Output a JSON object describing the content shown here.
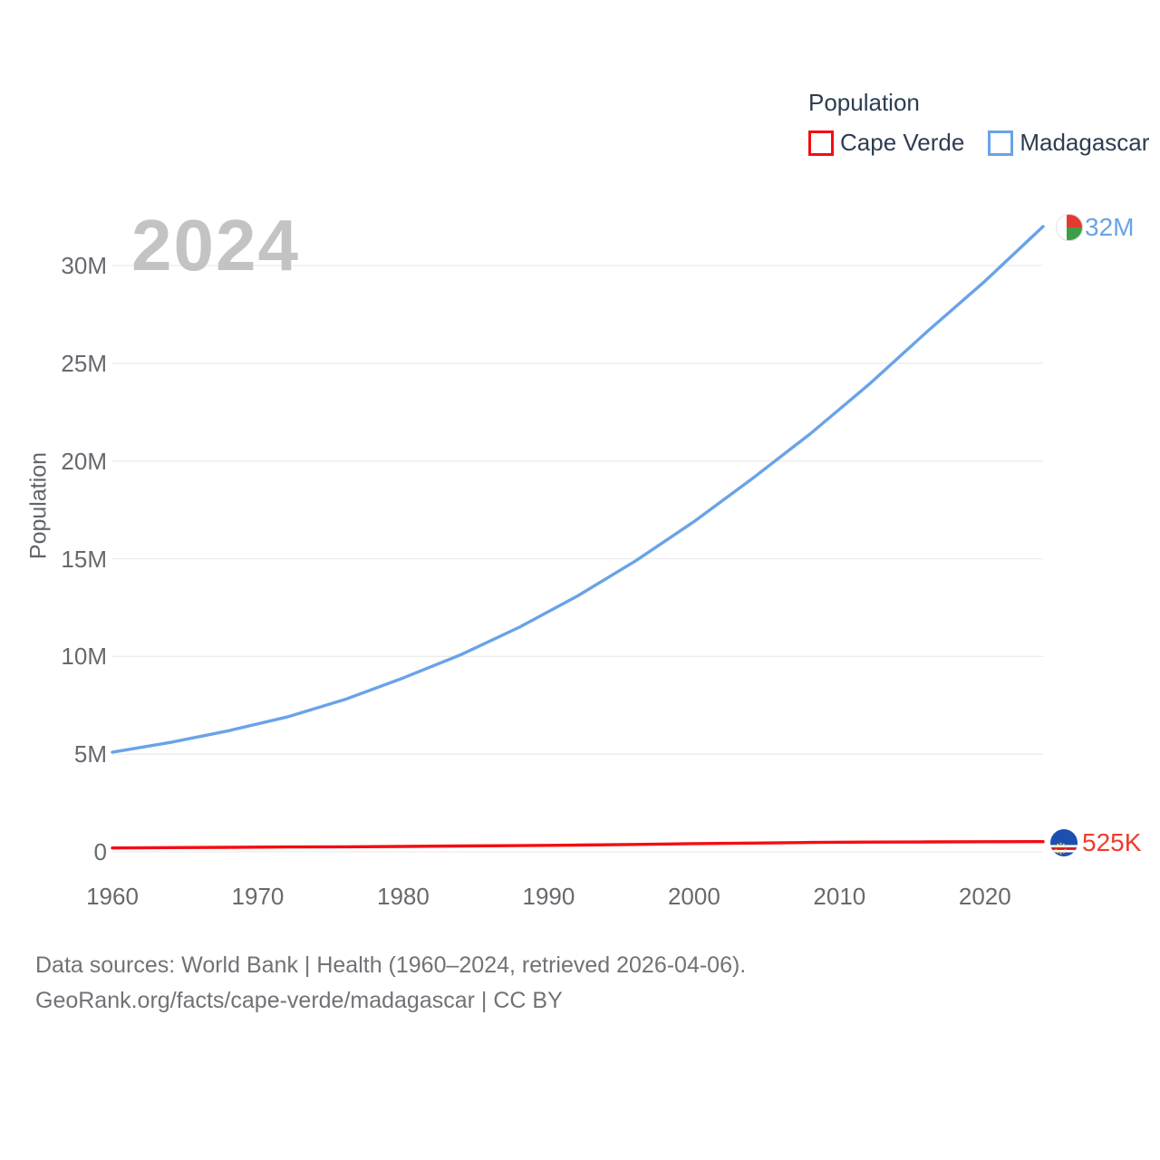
{
  "page": {
    "background": "#ffffff"
  },
  "legend": {
    "title": "Population",
    "items": [
      {
        "label": "Cape Verde",
        "color": "#f40d12"
      },
      {
        "label": "Madagascar",
        "color": "#69a3e8"
      }
    ]
  },
  "watermark_year": "2024",
  "end_labels": [
    {
      "text": "525K",
      "color": "#ef3b2d",
      "flag": "cape-verde-flag"
    },
    {
      "text": "32M",
      "color": "#69a3e8",
      "flag": "madagascar-flag"
    }
  ],
  "footer": {
    "line1": "Data sources: World Bank | Health (1960–2024, retrieved 2026-04-06).",
    "line2": "GeoRank.org/facts/cape-verde/madagascar | CC BY"
  },
  "chart_data": {
    "type": "line",
    "title": "Population",
    "xlabel": "",
    "ylabel": "Population",
    "grid": true,
    "legend_position": "top-right",
    "x_range": [
      1960,
      2024
    ],
    "ylim_millions": [
      0,
      32.5
    ],
    "x_ticks": [
      "1960",
      "1970",
      "1980",
      "1990",
      "2000",
      "2010",
      "2020"
    ],
    "y_ticks": [
      {
        "value_millions": 0,
        "label": "0"
      },
      {
        "value_millions": 5,
        "label": "5M"
      },
      {
        "value_millions": 10,
        "label": "10M"
      },
      {
        "value_millions": 15,
        "label": "15M"
      },
      {
        "value_millions": 20,
        "label": "20M"
      },
      {
        "value_millions": 25,
        "label": "25M"
      },
      {
        "value_millions": 30,
        "label": "30M"
      }
    ],
    "years": [
      1960,
      1964,
      1968,
      1972,
      1976,
      1980,
      1984,
      1988,
      1992,
      1996,
      2000,
      2004,
      2008,
      2012,
      2016,
      2020,
      2024
    ],
    "series": [
      {
        "name": "Cape Verde",
        "color": "#f40d12",
        "end_label": "525K",
        "values_millions": [
          0.2,
          0.22,
          0.23,
          0.25,
          0.26,
          0.28,
          0.3,
          0.32,
          0.35,
          0.38,
          0.42,
          0.45,
          0.48,
          0.5,
          0.51,
          0.52,
          0.525
        ]
      },
      {
        "name": "Madagascar",
        "color": "#69a3e8",
        "end_label": "32M",
        "values_millions": [
          5.1,
          5.6,
          6.2,
          6.9,
          7.8,
          8.9,
          10.1,
          11.5,
          13.1,
          14.9,
          16.9,
          19.1,
          21.4,
          23.9,
          26.6,
          29.2,
          32.0
        ]
      }
    ]
  }
}
